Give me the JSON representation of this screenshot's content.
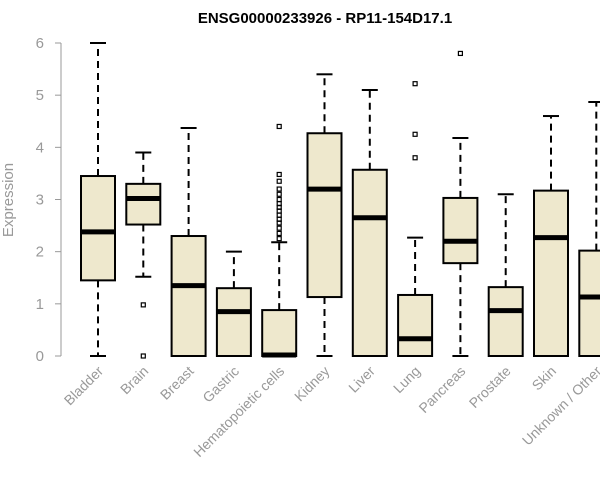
{
  "chart_data": {
    "type": "box",
    "title": "ENSG00000233926 - RP11-154D17.1",
    "ylabel": "Expression",
    "xlabel": "",
    "ylim": [
      0,
      6
    ],
    "yticks": [
      0,
      1,
      2,
      3,
      4,
      5,
      6
    ],
    "grid": false,
    "colors": {
      "box_fill": "#EEE8CD",
      "box_stroke": "#000000",
      "axis": "#999999"
    },
    "categories": [
      "Bladder",
      "Brain",
      "Breast",
      "Gastric",
      "Hematopoietic cells",
      "Kidney",
      "Liver",
      "Lung",
      "Pancreas",
      "Prostate",
      "Skin",
      "Unknown / Other"
    ],
    "boxes": [
      {
        "min": 0.0,
        "q1": 1.45,
        "median": 2.38,
        "q3": 3.45,
        "max": 6.0,
        "outliers": []
      },
      {
        "min": 1.52,
        "q1": 2.52,
        "median": 3.02,
        "q3": 3.3,
        "max": 3.9,
        "outliers": [
          0.98,
          0.0
        ]
      },
      {
        "min": 0.0,
        "q1": 0.0,
        "median": 1.35,
        "q3": 2.3,
        "max": 4.37,
        "outliers": []
      },
      {
        "min": 0.0,
        "q1": 0.0,
        "median": 0.85,
        "q3": 1.3,
        "max": 2.0,
        "outliers": []
      },
      {
        "min": 0.0,
        "q1": 0.0,
        "median": 0.02,
        "q3": 0.88,
        "max": 2.18,
        "outliers": [
          2.25,
          2.35,
          2.45,
          2.55,
          2.62,
          2.7,
          2.78,
          2.85,
          2.92,
          3.0,
          3.1,
          3.2,
          3.35,
          3.48,
          4.4
        ]
      },
      {
        "min": 0.0,
        "q1": 1.13,
        "median": 3.2,
        "q3": 4.27,
        "max": 5.4,
        "outliers": []
      },
      {
        "min": 0.0,
        "q1": 0.0,
        "median": 2.65,
        "q3": 3.57,
        "max": 5.1,
        "outliers": []
      },
      {
        "min": 0.0,
        "q1": 0.0,
        "median": 0.33,
        "q3": 1.17,
        "max": 2.27,
        "outliers": [
          3.8,
          4.25,
          5.22
        ]
      },
      {
        "min": 0.0,
        "q1": 1.78,
        "median": 2.2,
        "q3": 3.03,
        "max": 4.18,
        "outliers": [
          5.8
        ]
      },
      {
        "min": 0.0,
        "q1": 0.0,
        "median": 0.87,
        "q3": 1.32,
        "max": 3.1,
        "outliers": []
      },
      {
        "min": 0.0,
        "q1": 0.0,
        "median": 2.27,
        "q3": 3.17,
        "max": 4.6,
        "outliers": []
      },
      {
        "min": 0.0,
        "q1": 0.0,
        "median": 1.13,
        "q3": 2.02,
        "max": 4.87,
        "outliers": []
      }
    ]
  }
}
